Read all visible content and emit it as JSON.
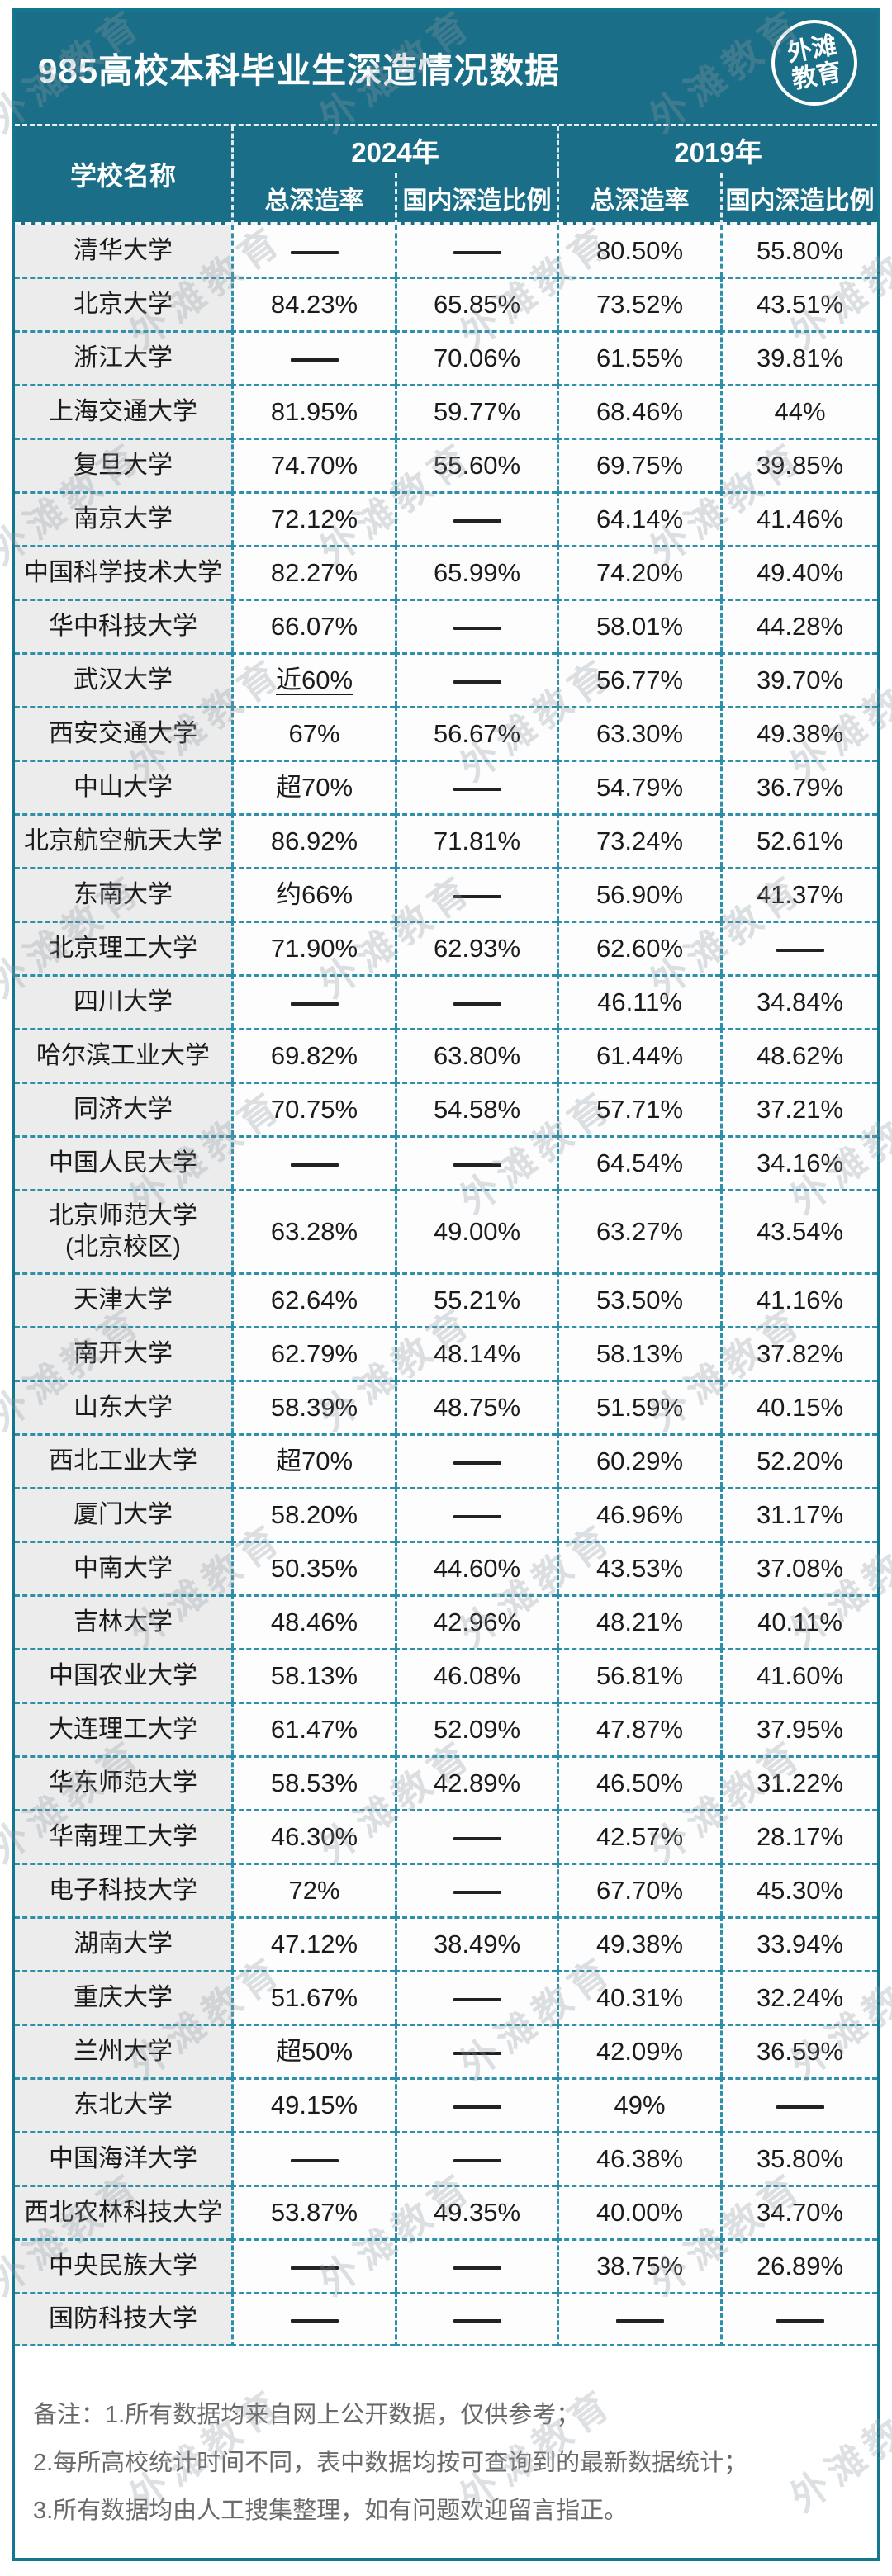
{
  "poster": {
    "title": "985高校本科毕业生深造情况数据",
    "logo": {
      "line1": "外滩",
      "line2": "教育"
    },
    "watermark": "外滩教育"
  },
  "table": {
    "school_header": "学校名称",
    "year_groups": [
      {
        "year": "2024年",
        "cols": [
          "总深造率",
          "国内深造比例"
        ]
      },
      {
        "year": "2019年",
        "cols": [
          "总深造率",
          "国内深造比例"
        ]
      }
    ],
    "empty_marker": "——",
    "rows": [
      {
        "school": "清华大学",
        "t24": "——",
        "d24": "——",
        "t19": "80.50%",
        "d19": "55.80%"
      },
      {
        "school": "北京大学",
        "t24": "84.23%",
        "d24": "65.85%",
        "t19": "73.52%",
        "d19": "43.51%"
      },
      {
        "school": "浙江大学",
        "t24": "——",
        "d24": "70.06%",
        "t19": "61.55%",
        "d19": "39.81%"
      },
      {
        "school": "上海交通大学",
        "t24": "81.95%",
        "d24": "59.77%",
        "t19": "68.46%",
        "d19": "44%"
      },
      {
        "school": "复旦大学",
        "t24": "74.70%",
        "d24": "55.60%",
        "t19": "69.75%",
        "d19": "39.85%"
      },
      {
        "school": "南京大学",
        "t24": "72.12%",
        "d24": "——",
        "t19": "64.14%",
        "d19": "41.46%"
      },
      {
        "school": "中国科学技术大学",
        "t24": "82.27%",
        "d24": "65.99%",
        "t19": "74.20%",
        "d19": "49.40%"
      },
      {
        "school": "华中科技大学",
        "t24": "66.07%",
        "d24": "——",
        "t19": "58.01%",
        "d19": "44.28%"
      },
      {
        "school": "武汉大学",
        "t24": "近60%",
        "d24": "——",
        "t19": "56.77%",
        "d19": "39.70%",
        "underline": "t24"
      },
      {
        "school": "西安交通大学",
        "t24": "67%",
        "d24": "56.67%",
        "t19": "63.30%",
        "d19": "49.38%"
      },
      {
        "school": "中山大学",
        "t24": "超70%",
        "d24": "——",
        "t19": "54.79%",
        "d19": "36.79%"
      },
      {
        "school": "北京航空航天大学",
        "t24": "86.92%",
        "d24": "71.81%",
        "t19": "73.24%",
        "d19": "52.61%"
      },
      {
        "school": "东南大学",
        "t24": "约66%",
        "d24": "——",
        "t19": "56.90%",
        "d19": "41.37%"
      },
      {
        "school": "北京理工大学",
        "t24": "71.90%",
        "d24": "62.93%",
        "t19": "62.60%",
        "d19": "——"
      },
      {
        "school": "四川大学",
        "t24": "——",
        "d24": "——",
        "t19": "46.11%",
        "d19": "34.84%"
      },
      {
        "school": "哈尔滨工业大学",
        "t24": "69.82%",
        "d24": "63.80%",
        "t19": "61.44%",
        "d19": "48.62%"
      },
      {
        "school": "同济大学",
        "t24": "70.75%",
        "d24": "54.58%",
        "t19": "57.71%",
        "d19": "37.21%"
      },
      {
        "school": "中国人民大学",
        "t24": "——",
        "d24": "——",
        "t19": "64.54%",
        "d19": "34.16%"
      },
      {
        "school": "北京师范大学\n(北京校区)",
        "t24": "63.28%",
        "d24": "49.00%",
        "t19": "63.27%",
        "d19": "43.54%"
      },
      {
        "school": "天津大学",
        "t24": "62.64%",
        "d24": "55.21%",
        "t19": "53.50%",
        "d19": "41.16%"
      },
      {
        "school": "南开大学",
        "t24": "62.79%",
        "d24": "48.14%",
        "t19": "58.13%",
        "d19": "37.82%"
      },
      {
        "school": "山东大学",
        "t24": "58.39%",
        "d24": "48.75%",
        "t19": "51.59%",
        "d19": "40.15%"
      },
      {
        "school": "西北工业大学",
        "t24": "超70%",
        "d24": "——",
        "t19": "60.29%",
        "d19": "52.20%"
      },
      {
        "school": "厦门大学",
        "t24": "58.20%",
        "d24": "——",
        "t19": "46.96%",
        "d19": "31.17%"
      },
      {
        "school": "中南大学",
        "t24": "50.35%",
        "d24": "44.60%",
        "t19": "43.53%",
        "d19": "37.08%"
      },
      {
        "school": "吉林大学",
        "t24": "48.46%",
        "d24": "42.96%",
        "t19": "48.21%",
        "d19": "40.11%"
      },
      {
        "school": "中国农业大学",
        "t24": "58.13%",
        "d24": "46.08%",
        "t19": "56.81%",
        "d19": "41.60%"
      },
      {
        "school": "大连理工大学",
        "t24": "61.47%",
        "d24": "52.09%",
        "t19": "47.87%",
        "d19": "37.95%"
      },
      {
        "school": "华东师范大学",
        "t24": "58.53%",
        "d24": "42.89%",
        "t19": "46.50%",
        "d19": "31.22%"
      },
      {
        "school": "华南理工大学",
        "t24": "46.30%",
        "d24": "——",
        "t19": "42.57%",
        "d19": "28.17%"
      },
      {
        "school": "电子科技大学",
        "t24": "72%",
        "d24": "——",
        "t19": "67.70%",
        "d19": "45.30%"
      },
      {
        "school": "湖南大学",
        "t24": "47.12%",
        "d24": "38.49%",
        "t19": "49.38%",
        "d19": "33.94%"
      },
      {
        "school": "重庆大学",
        "t24": "51.67%",
        "d24": "——",
        "t19": "40.31%",
        "d19": "32.24%"
      },
      {
        "school": "兰州大学",
        "t24": "超50%",
        "d24": "——",
        "t19": "42.09%",
        "d19": "36.59%"
      },
      {
        "school": "东北大学",
        "t24": "49.15%",
        "d24": "——",
        "t19": "49%",
        "d19": "——"
      },
      {
        "school": "中国海洋大学",
        "t24": "——",
        "d24": "——",
        "t19": "46.38%",
        "d19": "35.80%"
      },
      {
        "school": "西北农林科技大学",
        "t24": "53.87%",
        "d24": "49.35%",
        "t19": "40.00%",
        "d19": "34.70%"
      },
      {
        "school": "中央民族大学",
        "t24": "——",
        "d24": "——",
        "t19": "38.75%",
        "d19": "26.89%"
      },
      {
        "school": "国防科技大学",
        "t24": "——",
        "d24": "——",
        "t19": "——",
        "d19": "——"
      }
    ]
  },
  "notes": {
    "label": "备注：",
    "lines": [
      "1.所有数据均来自网上公开数据，仅供参考；",
      "2.每所高校统计时间不同，表中数据均按可查询到的最新数据统计；",
      "3.所有数据均由人工搜集整理，如有问题欢迎留言指正。"
    ]
  },
  "colors": {
    "teal": "#1A6E87",
    "dashed_border": "#2D8FA9",
    "school_column_bg": "#ECECEC",
    "notes_text": "#6a6a6a"
  }
}
